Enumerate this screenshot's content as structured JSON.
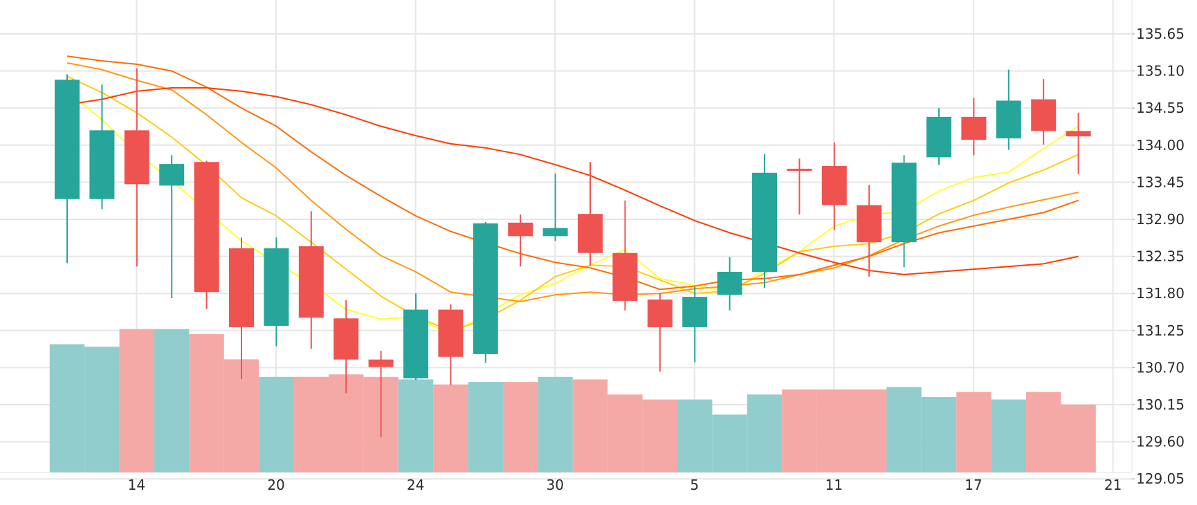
{
  "chart_data": {
    "type": "candlestick",
    "colors": {
      "up": "#26a69a",
      "down": "#ef5350",
      "up_volume": "#92cdcd",
      "down_volume": "#f5a9a7",
      "grid": "#e6e6e6",
      "ma": [
        "#ffff33",
        "#ffcc11",
        "#ff9911",
        "#ff6d00",
        "#ff3b00"
      ]
    },
    "y_axis": {
      "position": "right",
      "ticks": [
        "135.65",
        "135.10",
        "134.55",
        "134.00",
        "133.45",
        "132.90",
        "132.35",
        "131.80",
        "131.25",
        "130.70",
        "130.15",
        "129.60",
        "129.05"
      ]
    },
    "x_axis": {
      "ticks": [
        {
          "label": "14",
          "index": 1
        },
        {
          "label": "20",
          "index": 5
        },
        {
          "label": "24",
          "index": 9
        },
        {
          "label": "30",
          "index": 13
        },
        {
          "label": "5",
          "index": 17
        },
        {
          "label": "11",
          "index": 21
        },
        {
          "label": "17",
          "index": 25
        },
        {
          "label": "21",
          "index": 29
        }
      ]
    },
    "candles": [
      {
        "open": 133.2,
        "high": 135.05,
        "low": 132.25,
        "close": 134.97
      },
      {
        "open": 133.2,
        "high": 134.9,
        "low": 133.05,
        "close": 134.22
      },
      {
        "open": 134.22,
        "high": 135.14,
        "low": 132.2,
        "close": 133.42
      },
      {
        "open": 133.4,
        "high": 133.85,
        "low": 131.73,
        "close": 133.72
      },
      {
        "open": 133.75,
        "high": 133.77,
        "low": 131.57,
        "close": 131.82
      },
      {
        "open": 132.47,
        "high": 132.63,
        "low": 130.53,
        "close": 131.3
      },
      {
        "open": 131.32,
        "high": 132.63,
        "low": 131.02,
        "close": 132.47
      },
      {
        "open": 132.5,
        "high": 133.02,
        "low": 130.98,
        "close": 131.44
      },
      {
        "open": 131.43,
        "high": 131.7,
        "low": 130.32,
        "close": 130.82
      },
      {
        "open": 130.82,
        "high": 130.95,
        "low": 129.67,
        "close": 130.71
      },
      {
        "open": 130.54,
        "high": 131.8,
        "low": 130.52,
        "close": 131.56
      },
      {
        "open": 131.56,
        "high": 131.64,
        "low": 130.44,
        "close": 130.86
      },
      {
        "open": 130.9,
        "high": 132.86,
        "low": 130.77,
        "close": 132.84
      },
      {
        "open": 132.85,
        "high": 132.97,
        "low": 132.2,
        "close": 132.65
      },
      {
        "open": 132.65,
        "high": 133.58,
        "low": 132.58,
        "close": 132.77
      },
      {
        "open": 132.98,
        "high": 133.75,
        "low": 132.21,
        "close": 132.4
      },
      {
        "open": 132.4,
        "high": 133.18,
        "low": 131.55,
        "close": 131.69
      },
      {
        "open": 131.71,
        "high": 131.81,
        "low": 130.64,
        "close": 131.3
      },
      {
        "open": 131.3,
        "high": 131.9,
        "low": 130.78,
        "close": 131.75
      },
      {
        "open": 131.78,
        "high": 132.34,
        "low": 131.55,
        "close": 132.12
      },
      {
        "open": 132.12,
        "high": 133.87,
        "low": 131.88,
        "close": 133.59
      },
      {
        "open": 133.65,
        "high": 133.8,
        "low": 132.97,
        "close": 133.63
      },
      {
        "open": 133.69,
        "high": 134.04,
        "low": 132.74,
        "close": 133.11
      },
      {
        "open": 133.11,
        "high": 133.41,
        "low": 132.05,
        "close": 132.56
      },
      {
        "open": 132.56,
        "high": 133.85,
        "low": 132.19,
        "close": 133.74
      },
      {
        "open": 133.82,
        "high": 134.55,
        "low": 133.71,
        "close": 134.42
      },
      {
        "open": 134.42,
        "high": 134.7,
        "low": 133.85,
        "close": 134.08
      },
      {
        "open": 134.1,
        "high": 135.12,
        "low": 133.93,
        "close": 134.66
      },
      {
        "open": 134.68,
        "high": 134.98,
        "low": 134.01,
        "close": 134.21
      },
      {
        "open": 134.21,
        "high": 134.48,
        "low": 133.57,
        "close": 134.13
      }
    ],
    "volume_axis_max": 100,
    "volume": [
      51,
      50,
      57,
      57,
      55,
      45,
      38,
      38,
      39,
      38,
      37,
      35,
      36,
      36,
      38,
      37,
      31,
      29,
      29,
      23,
      31,
      33,
      33,
      33,
      34,
      30,
      32,
      29,
      32,
      27
    ],
    "moving_averages": [
      [
        134.8,
        134.38,
        133.88,
        133.48,
        133.02,
        132.58,
        132.25,
        131.95,
        131.56,
        131.42,
        131.45,
        131.19,
        131.5,
        131.78,
        131.95,
        132.22,
        132.45,
        132.02,
        131.92,
        131.82,
        132.15,
        132.42,
        132.8,
        132.96,
        133.02,
        133.32,
        133.52,
        133.6,
        133.95,
        134.28
      ],
      [
        135.02,
        134.78,
        134.48,
        134.12,
        133.7,
        133.22,
        132.95,
        132.56,
        132.16,
        131.76,
        131.46,
        131.24,
        131.42,
        131.7,
        132.05,
        132.22,
        132.2,
        132.0,
        131.8,
        131.84,
        132.1,
        132.42,
        132.5,
        132.54,
        132.7,
        132.98,
        133.18,
        133.44,
        133.63,
        133.86
      ],
      [
        135.22,
        135.12,
        134.96,
        134.82,
        134.45,
        134.04,
        133.66,
        133.18,
        132.75,
        132.36,
        132.12,
        131.82,
        131.75,
        131.68,
        131.78,
        131.82,
        131.78,
        131.8,
        131.87,
        131.91,
        131.96,
        132.08,
        132.18,
        132.36,
        132.6,
        132.8,
        132.96,
        133.08,
        133.19,
        133.3
      ],
      [
        135.32,
        135.25,
        135.2,
        135.1,
        134.86,
        134.55,
        134.28,
        133.9,
        133.55,
        133.24,
        132.95,
        132.72,
        132.55,
        132.39,
        132.26,
        132.18,
        132.04,
        131.86,
        131.91,
        132.0,
        132.02,
        132.08,
        132.22,
        132.35,
        132.54,
        132.7,
        132.8,
        132.9,
        133.0,
        133.18
      ],
      [
        134.6,
        134.68,
        134.8,
        134.85,
        134.85,
        134.8,
        134.72,
        134.6,
        134.45,
        134.28,
        134.14,
        134.02,
        133.96,
        133.86,
        133.71,
        133.55,
        133.33,
        133.1,
        132.88,
        132.7,
        132.55,
        132.4,
        132.26,
        132.14,
        132.08,
        132.12,
        132.16,
        132.2,
        132.24,
        132.35
      ]
    ]
  }
}
